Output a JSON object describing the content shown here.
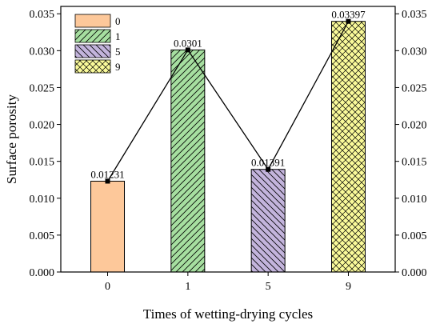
{
  "chart_data": {
    "type": "bar",
    "categories": [
      "0",
      "1",
      "5",
      "9"
    ],
    "values": [
      0.01231,
      0.0301,
      0.01391,
      0.03397
    ],
    "data_labels": [
      "0.01231",
      "0.0301",
      "0.01391",
      "0.03397"
    ],
    "title": "",
    "xlabel": "Times of wetting-drying cycles",
    "ylabel": "Surface porosity",
    "ylim": [
      0,
      0.036
    ],
    "yticks": [
      "0.000",
      "0.005",
      "0.010",
      "0.015",
      "0.020",
      "0.025",
      "0.030",
      "0.035"
    ],
    "ytick_values": [
      0,
      0.005,
      0.01,
      0.015,
      0.02,
      0.025,
      0.03,
      0.035
    ],
    "right_axis_mirrored": true,
    "overlay_line": true,
    "grid": false,
    "legend_placement": "top-left",
    "legend": [
      {
        "label": "0",
        "color": "#fdc89a",
        "pattern": "none"
      },
      {
        "label": "1",
        "color": "#a6dfa0",
        "pattern": "diagonal-up"
      },
      {
        "label": "5",
        "color": "#c3b4dc",
        "pattern": "diagonal-down"
      },
      {
        "label": "9",
        "color": "#fafa9a",
        "pattern": "crosshatch"
      }
    ]
  }
}
